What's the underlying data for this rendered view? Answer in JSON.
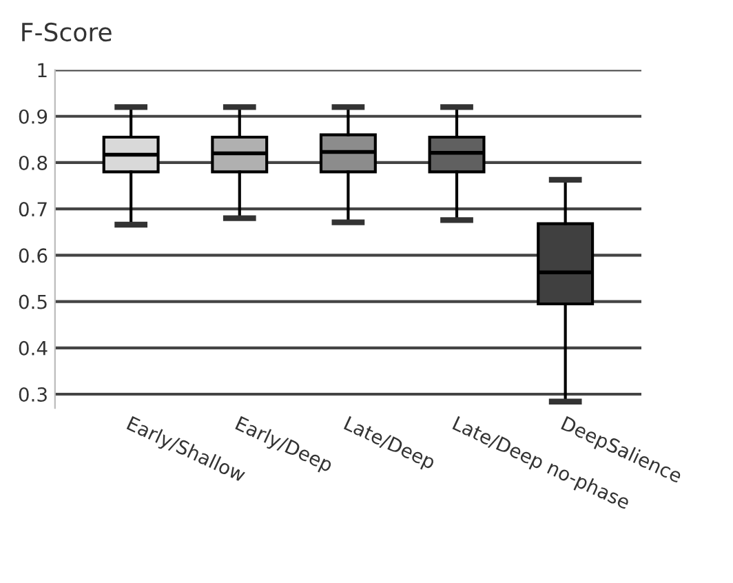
{
  "chart_data": {
    "type": "box",
    "ylabel": "F-Score",
    "categories": [
      "Early/Shallow",
      "Early/Deep",
      "Late/Deep",
      "Late/Deep no-phase",
      "DeepSalience"
    ],
    "colors": [
      "#d9d9d9",
      "#b0b0b0",
      "#8c8c8c",
      "#606060",
      "#404040"
    ],
    "boxes": [
      {
        "low": 0.666,
        "q1": 0.78,
        "median": 0.817,
        "q3": 0.855,
        "high": 0.92
      },
      {
        "low": 0.68,
        "q1": 0.78,
        "median": 0.82,
        "q3": 0.855,
        "high": 0.92
      },
      {
        "low": 0.671,
        "q1": 0.78,
        "median": 0.823,
        "q3": 0.86,
        "high": 0.92
      },
      {
        "low": 0.676,
        "q1": 0.78,
        "median": 0.821,
        "q3": 0.855,
        "high": 0.92
      },
      {
        "low": 0.284,
        "q1": 0.495,
        "median": 0.563,
        "q3": 0.668,
        "high": 0.763
      }
    ],
    "ylim": [
      0.27,
      1.0
    ],
    "yticks": [
      0.3,
      0.4,
      0.5,
      0.6,
      0.7,
      0.8,
      0.9,
      1
    ],
    "grid": "y"
  }
}
